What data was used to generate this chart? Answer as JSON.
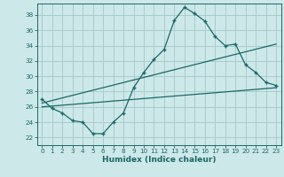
{
  "title": "",
  "xlabel": "Humidex (Indice chaleur)",
  "bg_color": "#cde8e8",
  "line_color": "#1a6868",
  "grid_color": "#a8cccc",
  "xlim": [
    -0.5,
    23.5
  ],
  "ylim": [
    21.0,
    39.5
  ],
  "xticks": [
    0,
    1,
    2,
    3,
    4,
    5,
    6,
    7,
    8,
    9,
    10,
    11,
    12,
    13,
    14,
    15,
    16,
    17,
    18,
    19,
    20,
    21,
    22,
    23
  ],
  "yticks": [
    22,
    24,
    26,
    28,
    30,
    32,
    34,
    36,
    38
  ],
  "line1_x": [
    0,
    1,
    2,
    3,
    4,
    5,
    6,
    7,
    8,
    9,
    10,
    11,
    12,
    13,
    14,
    15,
    16,
    17,
    18,
    19,
    20,
    21,
    22,
    23
  ],
  "line1_y": [
    27.0,
    25.8,
    25.2,
    24.2,
    24.0,
    22.5,
    22.5,
    24.0,
    25.2,
    28.5,
    30.5,
    32.2,
    33.5,
    37.3,
    39.0,
    38.2,
    37.2,
    35.2,
    34.0,
    34.2,
    31.5,
    30.5,
    29.2,
    28.8
  ],
  "line2_x": [
    0,
    23
  ],
  "line2_y": [
    26.5,
    34.2
  ],
  "line3_x": [
    0,
    23
  ],
  "line3_y": [
    26.0,
    28.5
  ],
  "tick_fontsize": 5.2,
  "xlabel_fontsize": 6.5
}
